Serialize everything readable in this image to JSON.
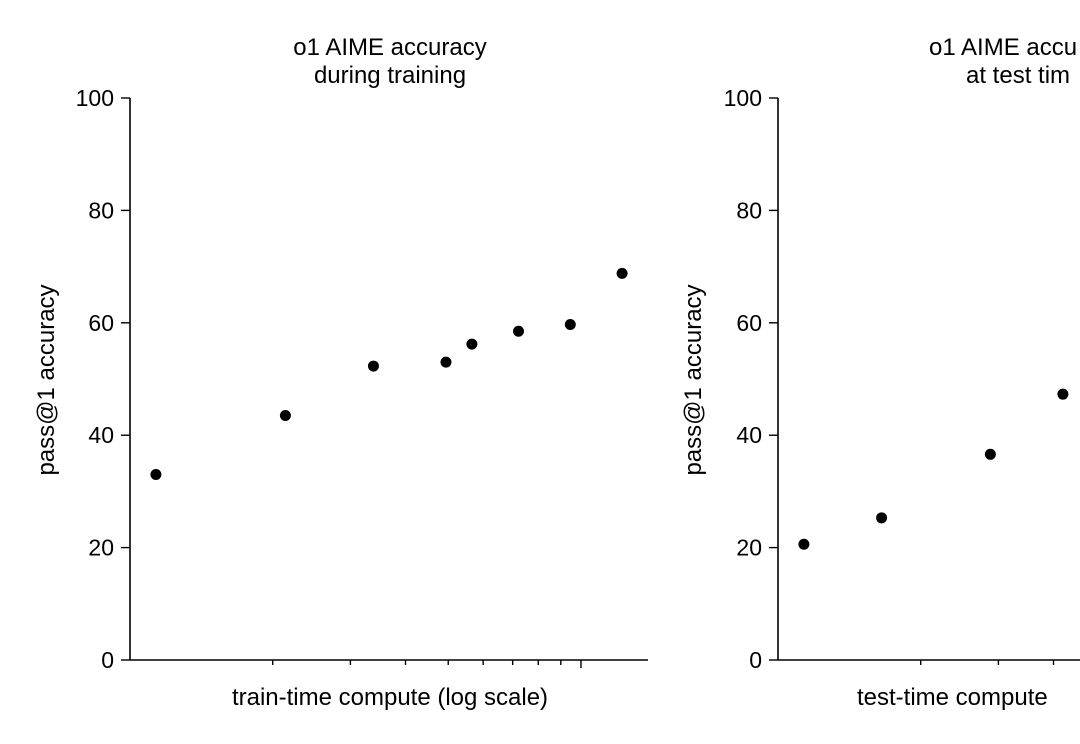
{
  "chart_data": [
    {
      "type": "scatter",
      "title": [
        "o1 AIME accuracy",
        "during training"
      ],
      "xlabel": "train-time compute (log scale)",
      "ylabel": "pass@1 accuracy",
      "ylim": [
        0,
        100
      ],
      "yticks": [
        0,
        20,
        40,
        60,
        80,
        100
      ],
      "x_scale": "log",
      "x_tick_labels": "none",
      "grid": false,
      "series": [
        {
          "color": "#000000",
          "points_log_x_fraction": [
            0.05,
            0.3,
            0.47,
            0.61,
            0.66,
            0.75,
            0.85,
            0.95
          ],
          "y": [
            33,
            43.5,
            52.3,
            53,
            56.2,
            58.5,
            59.7,
            68.8
          ]
        }
      ]
    },
    {
      "type": "scatter",
      "title": [
        "o1 AIME accu",
        "at test tim"
      ],
      "xlabel": "test-time compute",
      "ylabel": "pass@1 accuracy",
      "ylim": [
        0,
        100
      ],
      "yticks": [
        0,
        20,
        40,
        60,
        80,
        100
      ],
      "x_scale": "log",
      "x_tick_labels": "none",
      "grid": false,
      "series": [
        {
          "color": "#000000",
          "points_log_x_fraction": [
            0.05,
            0.2,
            0.41,
            0.55
          ],
          "y": [
            20.6,
            25.3,
            36.6,
            47.3
          ]
        }
      ]
    }
  ]
}
